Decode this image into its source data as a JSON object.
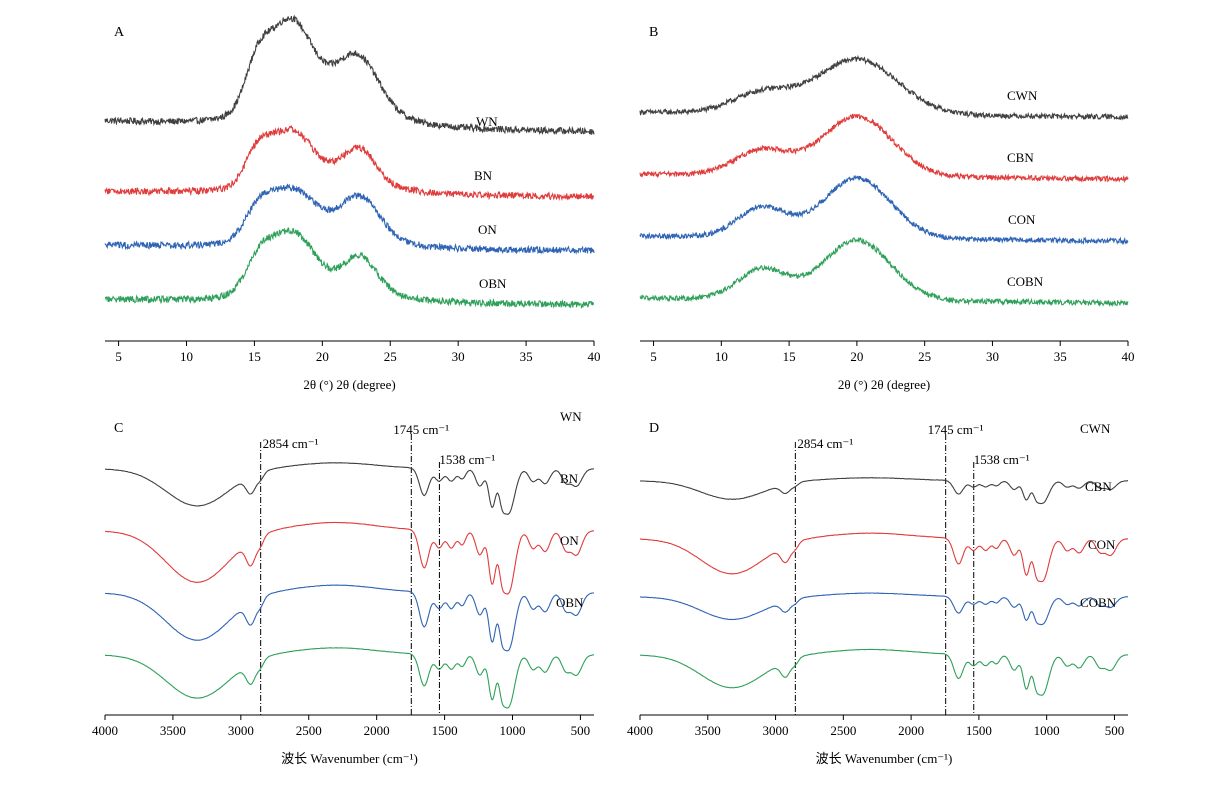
{
  "chart_data": [
    {
      "panel": "A",
      "type": "line",
      "xlabel": "2θ (°) 2θ (degree)",
      "xlim": [
        4,
        40
      ],
      "xticks": [
        5,
        10,
        15,
        20,
        25,
        30,
        35,
        40
      ],
      "yticks": "none",
      "series": [
        {
          "name": "WN",
          "color": "#404040",
          "offset": 3,
          "base": [
            0.25,
            0.15
          ],
          "peaks": [
            {
              "x": 15.2,
              "h": 0.35,
              "w": 0.9
            },
            {
              "x": 17.6,
              "h": 0.75,
              "w": 1.6
            },
            {
              "x": 22.6,
              "h": 0.45,
              "w": 1.5
            },
            {
              "x": 20,
              "h": 0.25,
              "w": 4
            }
          ],
          "noise": 0.03
        },
        {
          "name": "BN",
          "color": "#e03c3c",
          "offset": 2,
          "base": [
            0.1,
            0.05
          ],
          "peaks": [
            {
              "x": 15.2,
              "h": 0.25,
              "w": 0.9
            },
            {
              "x": 17.6,
              "h": 0.45,
              "w": 1.6
            },
            {
              "x": 22.7,
              "h": 0.3,
              "w": 1.2
            },
            {
              "x": 20,
              "h": 0.15,
              "w": 4
            }
          ],
          "noise": 0.03
        },
        {
          "name": "ON",
          "color": "#2f64b4",
          "offset": 1,
          "base": [
            0.1,
            0.05
          ],
          "peaks": [
            {
              "x": 15.3,
              "h": 0.22,
              "w": 1
            },
            {
              "x": 17.7,
              "h": 0.4,
              "w": 1.7
            },
            {
              "x": 22.8,
              "h": 0.35,
              "w": 1.4
            },
            {
              "x": 20,
              "h": 0.15,
              "w": 4
            }
          ],
          "noise": 0.03
        },
        {
          "name": "OBN",
          "color": "#2fa05a",
          "offset": 0,
          "base": [
            0.1,
            0.05
          ],
          "peaks": [
            {
              "x": 15.3,
              "h": 0.25,
              "w": 1
            },
            {
              "x": 17.7,
              "h": 0.5,
              "w": 1.6
            },
            {
              "x": 22.8,
              "h": 0.3,
              "w": 1.2
            },
            {
              "x": 20,
              "h": 0.15,
              "w": 4
            }
          ],
          "noise": 0.03
        }
      ]
    },
    {
      "panel": "B",
      "type": "line",
      "xlabel": "2θ (°) 2θ (degree)",
      "xlim": [
        4,
        40
      ],
      "xticks": [
        5,
        10,
        15,
        20,
        25,
        30,
        35,
        40
      ],
      "yticks": "none",
      "series": [
        {
          "name": "CWN",
          "color": "#404040",
          "offset": 3,
          "base": [
            0.1,
            0.05
          ],
          "peaks": [
            {
              "x": 13,
              "h": 0.2,
              "w": 2.2
            },
            {
              "x": 20,
              "h": 0.55,
              "w": 3
            }
          ],
          "noise": 0.025
        },
        {
          "name": "CBN",
          "color": "#e03c3c",
          "offset": 2,
          "base": [
            0.1,
            0.05
          ],
          "peaks": [
            {
              "x": 13,
              "h": 0.25,
              "w": 2
            },
            {
              "x": 20,
              "h": 0.6,
              "w": 2.6
            }
          ],
          "noise": 0.025
        },
        {
          "name": "CON",
          "color": "#2f64b4",
          "offset": 1,
          "base": [
            0.1,
            0.05
          ],
          "peaks": [
            {
              "x": 13,
              "h": 0.3,
              "w": 1.8
            },
            {
              "x": 20,
              "h": 0.6,
              "w": 2.5
            }
          ],
          "noise": 0.025
        },
        {
          "name": "COBN",
          "color": "#2fa05a",
          "offset": 0,
          "base": [
            0.1,
            0.05
          ],
          "peaks": [
            {
              "x": 13,
              "h": 0.3,
              "w": 1.8
            },
            {
              "x": 20,
              "h": 0.6,
              "w": 2.5
            }
          ],
          "noise": 0.025
        }
      ]
    },
    {
      "panel": "C",
      "type": "line",
      "xlabel": "波长 Wavenumber (cm⁻¹)",
      "xlim": [
        4000,
        400
      ],
      "xticks": [
        4000,
        3500,
        3000,
        2500,
        2000,
        1500,
        1000,
        500
      ],
      "yticks": "none",
      "vlines": [
        2854,
        1745,
        1538
      ],
      "annotations": [
        "2854 cm⁻¹",
        "1745 cm⁻¹",
        "1538 cm⁻¹"
      ],
      "series": [
        {
          "name": "WN",
          "color": "#404040",
          "offset": 3,
          "scale": 0.9
        },
        {
          "name": "BN",
          "color": "#e03c3c",
          "offset": 2,
          "scale": 1.25
        },
        {
          "name": "ON",
          "color": "#2f64b4",
          "offset": 1,
          "scale": 1.15
        },
        {
          "name": "OBN",
          "color": "#2fa05a",
          "offset": 0,
          "scale": 1.05
        }
      ]
    },
    {
      "panel": "D",
      "type": "line",
      "xlabel": "波长 Wavenumber (cm⁻¹)",
      "xlim": [
        4000,
        400
      ],
      "xticks": [
        4000,
        3500,
        3000,
        2500,
        2000,
        1500,
        1000,
        500
      ],
      "yticks": "none",
      "vlines": [
        2854,
        1745,
        1538
      ],
      "annotations": [
        "2854 cm⁻¹",
        "1745 cm⁻¹",
        "1538 cm⁻¹"
      ],
      "series": [
        {
          "name": "CWN",
          "color": "#404040",
          "offset": 3,
          "scale": 0.45
        },
        {
          "name": "CBN",
          "color": "#e03c3c",
          "offset": 2,
          "scale": 0.85
        },
        {
          "name": "CON",
          "color": "#2f64b4",
          "offset": 1,
          "scale": 0.55
        },
        {
          "name": "COBN",
          "color": "#2fa05a",
          "offset": 0,
          "scale": 0.8
        }
      ]
    }
  ]
}
